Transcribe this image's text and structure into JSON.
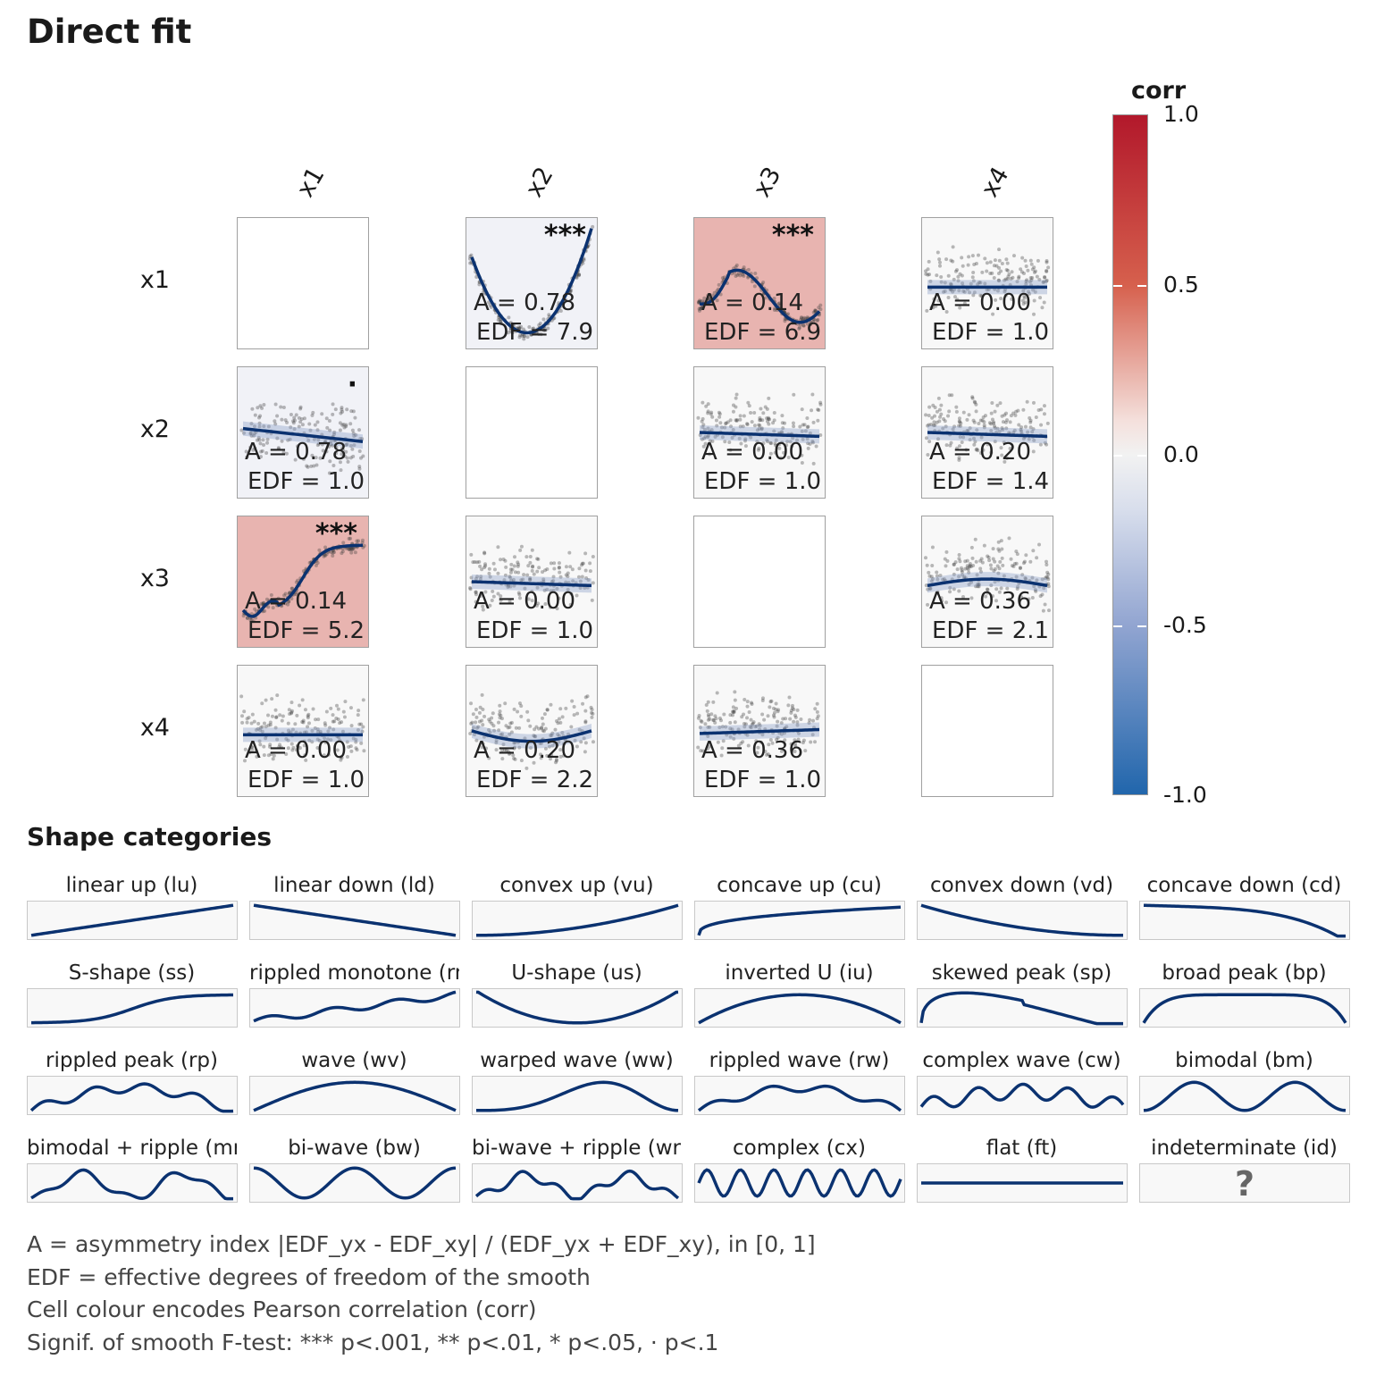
{
  "title": "Direct fit",
  "chart_data": {
    "type": "scatter-matrix",
    "variables": [
      "x1",
      "x2",
      "x3",
      "x4"
    ],
    "colorbar": {
      "title": "corr",
      "ticks": [
        "1.0",
        "0.5",
        "0.0",
        "-0.5",
        "-1.0"
      ],
      "range": [
        -1,
        1
      ],
      "low_color": "#2166ac",
      "mid_color": "#f7f7f7",
      "high_color": "#b2182b"
    },
    "cells": [
      {
        "row": "x1",
        "col": "x2",
        "a": "A = 0.78",
        "edf": "EDF = 7.9",
        "sig": "***",
        "corr": -0.05,
        "shape": "u"
      },
      {
        "row": "x1",
        "col": "x3",
        "a": "A = 0.14",
        "edf": "EDF = 6.9",
        "sig": "***",
        "corr": 0.45,
        "shape": "wave"
      },
      {
        "row": "x1",
        "col": "x4",
        "a": "A = 0.00",
        "edf": "EDF = 1.0",
        "sig": "",
        "corr": 0.02,
        "shape": "flat"
      },
      {
        "row": "x2",
        "col": "x1",
        "a": "A = 0.78",
        "edf": "EDF = 1.0",
        "sig": "·",
        "corr": -0.05,
        "shape": "down"
      },
      {
        "row": "x2",
        "col": "x3",
        "a": "A = 0.00",
        "edf": "EDF = 1.0",
        "sig": "",
        "corr": 0.0,
        "shape": "flatdown"
      },
      {
        "row": "x2",
        "col": "x4",
        "a": "A = 0.20",
        "edf": "EDF = 1.4",
        "sig": "",
        "corr": 0.0,
        "shape": "flatdown"
      },
      {
        "row": "x3",
        "col": "x1",
        "a": "A = 0.14",
        "edf": "EDF = 5.2",
        "sig": "***",
        "corr": 0.45,
        "shape": "s"
      },
      {
        "row": "x3",
        "col": "x2",
        "a": "A = 0.00",
        "edf": "EDF = 1.0",
        "sig": "",
        "corr": 0.0,
        "shape": "flatdown"
      },
      {
        "row": "x3",
        "col": "x4",
        "a": "A = 0.36",
        "edf": "EDF = 2.1",
        "sig": "",
        "corr": 0.02,
        "shape": "hump"
      },
      {
        "row": "x4",
        "col": "x1",
        "a": "A = 0.00",
        "edf": "EDF = 1.0",
        "sig": "",
        "corr": 0.02,
        "shape": "flat"
      },
      {
        "row": "x4",
        "col": "x2",
        "a": "A = 0.20",
        "edf": "EDF = 2.2",
        "sig": "",
        "corr": 0.0,
        "shape": "dip"
      },
      {
        "row": "x4",
        "col": "x3",
        "a": "A = 0.36",
        "edf": "EDF = 1.0",
        "sig": "",
        "corr": 0.02,
        "shape": "flatup"
      }
    ]
  },
  "shape_categories": {
    "title": "Shape categories",
    "items": [
      {
        "label": "linear up (lu)",
        "code": "lu"
      },
      {
        "label": "linear down (ld)",
        "code": "ld"
      },
      {
        "label": "convex up (vu)",
        "code": "vu"
      },
      {
        "label": "concave up (cu)",
        "code": "cu"
      },
      {
        "label": "convex down (vd)",
        "code": "vd"
      },
      {
        "label": "concave down (cd)",
        "code": "cd"
      },
      {
        "label": "S-shape (ss)",
        "code": "ss"
      },
      {
        "label": "rippled monotone (rm)",
        "code": "rm"
      },
      {
        "label": "U-shape (us)",
        "code": "us"
      },
      {
        "label": "inverted U (iu)",
        "code": "iu"
      },
      {
        "label": "skewed peak (sp)",
        "code": "sp"
      },
      {
        "label": "broad peak (bp)",
        "code": "bp"
      },
      {
        "label": "rippled peak (rp)",
        "code": "rp"
      },
      {
        "label": "wave (wv)",
        "code": "wv"
      },
      {
        "label": "warped wave (ww)",
        "code": "ww"
      },
      {
        "label": "rippled wave (rw)",
        "code": "rw"
      },
      {
        "label": "complex wave (cw)",
        "code": "cw"
      },
      {
        "label": "bimodal (bm)",
        "code": "bm"
      },
      {
        "label": "bimodal + ripple (mr)",
        "code": "mr"
      },
      {
        "label": "bi-wave (bw)",
        "code": "bw"
      },
      {
        "label": "bi-wave + ripple (wr)",
        "code": "wr"
      },
      {
        "label": "complex (cx)",
        "code": "cx"
      },
      {
        "label": "flat (ft)",
        "code": "ft"
      },
      {
        "label": "indeterminate (id)",
        "code": "id",
        "symbol": "?"
      }
    ]
  },
  "notes": [
    "A = asymmetry index |EDF_yx - EDF_xy| / (EDF_yx + EDF_xy), in [0, 1]",
    "EDF = effective degrees of freedom of the smooth",
    "Cell colour encodes Pearson correlation (corr)",
    "Signif. of smooth F-test: *** p<.001, ** p<.01, * p<.05, · p<.1"
  ]
}
